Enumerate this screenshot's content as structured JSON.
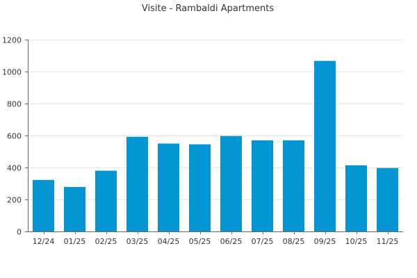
{
  "chart_data": {
    "type": "bar",
    "title": "Visite - Rambaldi Apartments",
    "categories": [
      "12/24",
      "01/25",
      "02/25",
      "03/25",
      "04/25",
      "05/25",
      "06/25",
      "07/25",
      "08/25",
      "09/25",
      "10/25",
      "11/25"
    ],
    "values": [
      322,
      278,
      380,
      592,
      550,
      545,
      597,
      570,
      570,
      1067,
      414,
      397
    ],
    "ylim": [
      0,
      1200
    ],
    "yticks": [
      0,
      200,
      400,
      600,
      800,
      1000,
      1200
    ],
    "grid": true,
    "bar_color": "#0496d3"
  }
}
